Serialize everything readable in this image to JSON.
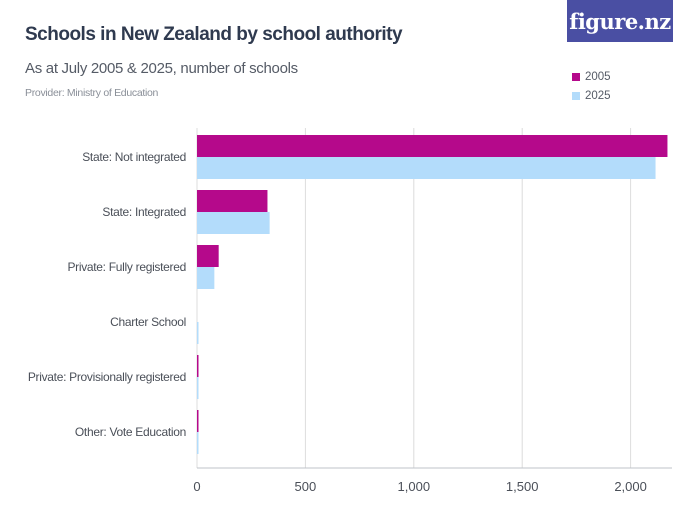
{
  "header": {
    "title": "Schools in New Zealand by school authority",
    "subtitle": "As at July 2005 & 2025, number of schools",
    "provider": "Provider: Ministry of Education",
    "logo_text": "figure.nz"
  },
  "colors": {
    "series_2005": "#b5098b",
    "series_2025": "#b3dcfb",
    "gridline": "#dcdcdc",
    "logo_bg": "#4a4fa3"
  },
  "chart_data": {
    "type": "bar",
    "orientation": "horizontal",
    "title": "Schools in New Zealand by school authority",
    "subtitle": "As at July 2005 & 2025, number of schools",
    "categories": [
      "State: Not integrated",
      "State: Integrated",
      "Private: Fully registered",
      "Charter School",
      "Private: Provisionally registered",
      "Other: Vote Education"
    ],
    "series": [
      {
        "name": "2005",
        "values": [
          2170,
          325,
          100,
          0,
          5,
          1
        ]
      },
      {
        "name": "2025",
        "values": [
          2115,
          335,
          80,
          4,
          1,
          1
        ]
      }
    ],
    "xlim": [
      0,
      2200
    ],
    "xticks": [
      0,
      500,
      1000,
      1500,
      2000
    ],
    "xtick_labels": [
      "0",
      "500",
      "1,000",
      "1,500",
      "2,000"
    ],
    "grid": true,
    "legend": "top-right"
  }
}
